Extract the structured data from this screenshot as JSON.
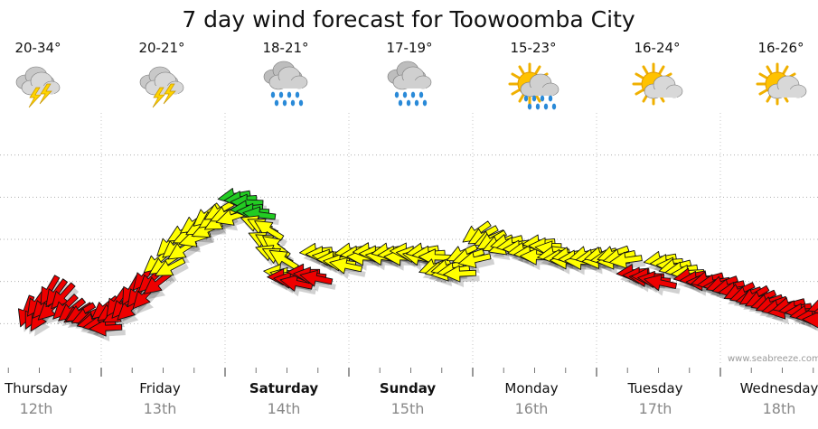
{
  "chart_data": {
    "type": "scatter",
    "title": "7 day wind forecast for Toowoomba City",
    "watermark": "www.seabreeze.com.au",
    "y_range": [
      0,
      6
    ],
    "grid": true,
    "days": [
      {
        "name": "Thursday",
        "date": "12th",
        "temp": "20-34°",
        "icon": "thunderstorm-icon",
        "bold": false
      },
      {
        "name": "Friday",
        "date": "13th",
        "temp": "20-21°",
        "icon": "thunderstorm-icon",
        "bold": false
      },
      {
        "name": "Saturday",
        "date": "14th",
        "temp": "18-21°",
        "icon": "rain-icon",
        "bold": true
      },
      {
        "name": "Sunday",
        "date": "15th",
        "temp": "17-19°",
        "icon": "rain-icon",
        "bold": true
      },
      {
        "name": "Monday",
        "date": "16th",
        "temp": "15-23°",
        "icon": "sun-showers-icon",
        "bold": false
      },
      {
        "name": "Tuesday",
        "date": "17th",
        "temp": "16-24°",
        "icon": "partly-cloudy-icon",
        "bold": false
      },
      {
        "name": "Wednesday",
        "date": "18th",
        "temp": "16-26°",
        "icon": "partly-cloudy-icon",
        "bold": false
      }
    ],
    "color_key": {
      "red": "#ee0000",
      "yellow": "#ffff00",
      "green": "#22cc22"
    },
    "wind_points": [
      {
        "t": 0.0,
        "v": 1.1,
        "dir": 110,
        "c": "red"
      },
      {
        "t": 0.08,
        "v": 1.4,
        "dir": 125,
        "c": "red"
      },
      {
        "t": 0.18,
        "v": 1.6,
        "dir": 120,
        "c": "red"
      },
      {
        "t": 0.3,
        "v": 1.3,
        "dir": 135,
        "c": "red"
      },
      {
        "t": 0.42,
        "v": 1.1,
        "dir": 150,
        "c": "red"
      },
      {
        "t": 0.52,
        "v": 1.0,
        "dir": 165,
        "c": "red"
      },
      {
        "t": 0.62,
        "v": 1.2,
        "dir": 140,
        "c": "red"
      },
      {
        "t": 0.72,
        "v": 1.4,
        "dir": 125,
        "c": "red"
      },
      {
        "t": 0.84,
        "v": 1.6,
        "dir": 120,
        "c": "red"
      },
      {
        "t": 0.94,
        "v": 2.0,
        "dir": 130,
        "c": "red"
      },
      {
        "t": 1.04,
        "v": 2.3,
        "dir": 140,
        "c": "yellow"
      },
      {
        "t": 1.14,
        "v": 2.8,
        "dir": 135,
        "c": "yellow"
      },
      {
        "t": 1.24,
        "v": 3.0,
        "dir": 150,
        "c": "yellow"
      },
      {
        "t": 1.34,
        "v": 3.3,
        "dir": 145,
        "c": "yellow"
      },
      {
        "t": 1.44,
        "v": 3.4,
        "dir": 140,
        "c": "yellow"
      },
      {
        "t": 1.54,
        "v": 3.6,
        "dir": 150,
        "c": "yellow"
      },
      {
        "t": 1.66,
        "v": 3.9,
        "dir": 170,
        "c": "green"
      },
      {
        "t": 1.76,
        "v": 3.7,
        "dir": 175,
        "c": "green"
      },
      {
        "t": 1.84,
        "v": 3.3,
        "dir": 200,
        "c": "yellow"
      },
      {
        "t": 1.9,
        "v": 3.0,
        "dir": 205,
        "c": "yellow"
      },
      {
        "t": 1.96,
        "v": 2.6,
        "dir": 200,
        "c": "yellow"
      },
      {
        "t": 2.03,
        "v": 2.2,
        "dir": 185,
        "c": "yellow"
      },
      {
        "t": 2.06,
        "v": 2.0,
        "dir": 180,
        "c": "red"
      },
      {
        "t": 2.22,
        "v": 2.2,
        "dir": 180,
        "c": "red"
      },
      {
        "t": 2.32,
        "v": 2.6,
        "dir": 175,
        "c": "yellow"
      },
      {
        "t": 2.46,
        "v": 2.5,
        "dir": 180,
        "c": "yellow"
      },
      {
        "t": 2.6,
        "v": 2.6,
        "dir": 170,
        "c": "yellow"
      },
      {
        "t": 2.75,
        "v": 2.7,
        "dir": 175,
        "c": "yellow"
      },
      {
        "t": 2.9,
        "v": 2.6,
        "dir": 170,
        "c": "yellow"
      },
      {
        "t": 3.05,
        "v": 2.7,
        "dir": 180,
        "c": "yellow"
      },
      {
        "t": 3.18,
        "v": 2.6,
        "dir": 170,
        "c": "yellow"
      },
      {
        "t": 3.28,
        "v": 2.3,
        "dir": 160,
        "c": "yellow"
      },
      {
        "t": 3.38,
        "v": 2.2,
        "dir": 165,
        "c": "yellow"
      },
      {
        "t": 3.5,
        "v": 2.6,
        "dir": 155,
        "c": "yellow"
      },
      {
        "t": 3.62,
        "v": 3.0,
        "dir": 145,
        "c": "yellow"
      },
      {
        "t": 3.74,
        "v": 2.9,
        "dir": 150,
        "c": "yellow"
      },
      {
        "t": 3.86,
        "v": 2.8,
        "dir": 165,
        "c": "yellow"
      },
      {
        "t": 4.0,
        "v": 2.7,
        "dir": 170,
        "c": "yellow"
      },
      {
        "t": 4.12,
        "v": 2.8,
        "dir": 175,
        "c": "yellow"
      },
      {
        "t": 4.24,
        "v": 2.6,
        "dir": 170,
        "c": "yellow"
      },
      {
        "t": 4.36,
        "v": 2.5,
        "dir": 170,
        "c": "yellow"
      },
      {
        "t": 4.5,
        "v": 2.6,
        "dir": 165,
        "c": "yellow"
      },
      {
        "t": 4.62,
        "v": 2.5,
        "dir": 165,
        "c": "yellow"
      },
      {
        "t": 4.72,
        "v": 2.6,
        "dir": 160,
        "c": "yellow"
      },
      {
        "t": 4.88,
        "v": 2.1,
        "dir": 175,
        "c": "red"
      },
      {
        "t": 5.0,
        "v": 2.1,
        "dir": 180,
        "c": "red"
      },
      {
        "t": 5.1,
        "v": 2.4,
        "dir": 170,
        "c": "yellow"
      },
      {
        "t": 5.22,
        "v": 2.3,
        "dir": 165,
        "c": "yellow"
      },
      {
        "t": 5.34,
        "v": 2.0,
        "dir": 170,
        "c": "red"
      },
      {
        "t": 5.48,
        "v": 2.0,
        "dir": 165,
        "c": "red"
      },
      {
        "t": 5.6,
        "v": 1.8,
        "dir": 160,
        "c": "red"
      },
      {
        "t": 5.74,
        "v": 1.7,
        "dir": 155,
        "c": "red"
      },
      {
        "t": 5.86,
        "v": 1.5,
        "dir": 150,
        "c": "red"
      },
      {
        "t": 6.0,
        "v": 1.4,
        "dir": 160,
        "c": "red"
      },
      {
        "t": 6.14,
        "v": 1.3,
        "dir": 165,
        "c": "red"
      },
      {
        "t": 6.28,
        "v": 1.2,
        "dir": 170,
        "c": "red"
      },
      {
        "t": 6.42,
        "v": 1.3,
        "dir": 160,
        "c": "red"
      },
      {
        "t": 6.55,
        "v": 1.4,
        "dir": 150,
        "c": "red"
      },
      {
        "t": 6.66,
        "v": 1.6,
        "dir": 140,
        "c": "red"
      }
    ]
  }
}
